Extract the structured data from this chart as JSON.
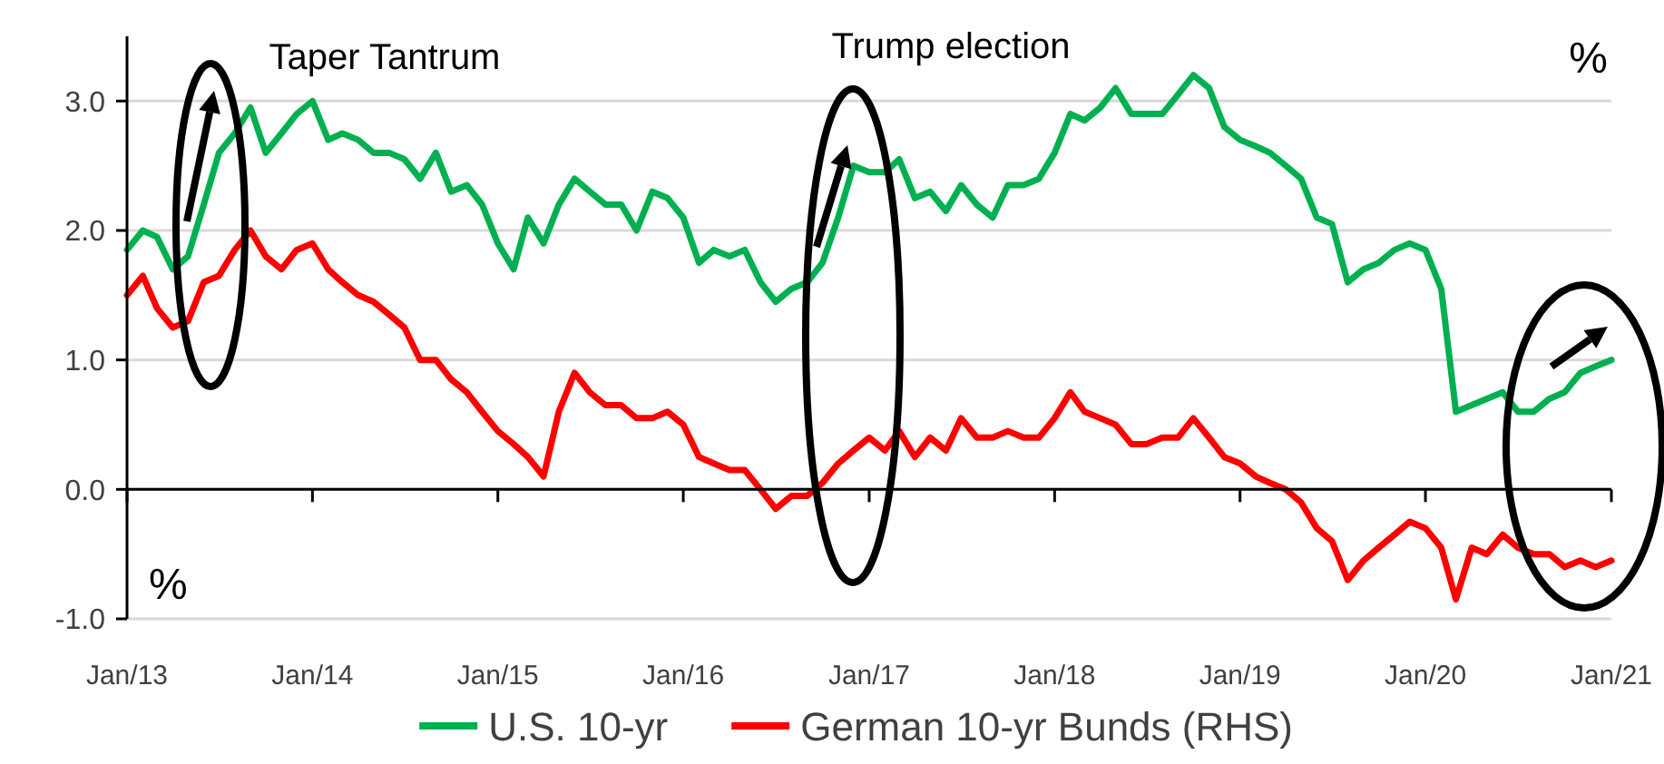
{
  "chart_data": {
    "type": "line",
    "ylabel": "%",
    "xlim": [
      "2013-01-01",
      "2021-01-01"
    ],
    "xticks": [
      {
        "value": "2013-01",
        "label": "Jan/13"
      },
      {
        "value": "2014-01",
        "label": "Jan/14"
      },
      {
        "value": "2015-01",
        "label": "Jan/15"
      },
      {
        "value": "2016-01",
        "label": "Jan/16"
      },
      {
        "value": "2017-01",
        "label": "Jan/17"
      },
      {
        "value": "2018-01",
        "label": "Jan/18"
      },
      {
        "value": "2019-01",
        "label": "Jan/19"
      },
      {
        "value": "2020-01",
        "label": "Jan/20"
      },
      {
        "value": "2021-01",
        "label": "Jan/21"
      }
    ],
    "ylim": [
      -1,
      3.5
    ],
    "yticks": [
      {
        "value": -1,
        "label": "-1.0"
      },
      {
        "value": 0,
        "label": "0.0"
      },
      {
        "value": 1,
        "label": "1.0"
      },
      {
        "value": 2,
        "label": "2.0"
      },
      {
        "value": 3,
        "label": "3.0"
      }
    ],
    "grid": "y",
    "legend": "bottom",
    "marker": "none",
    "line_style": "solid",
    "annotations": [
      "Taper Tantrum",
      "Trump election",
      "%"
    ],
    "x": [
      "2013-01",
      "2013-02",
      "2013-03",
      "2013-04",
      "2013-05",
      "2013-06",
      "2013-07",
      "2013-08",
      "2013-09",
      "2013-10",
      "2013-11",
      "2013-12",
      "2014-01",
      "2014-02",
      "2014-03",
      "2014-04",
      "2014-05",
      "2014-06",
      "2014-07",
      "2014-08",
      "2014-09",
      "2014-10",
      "2014-11",
      "2014-12",
      "2015-01",
      "2015-02",
      "2015-03",
      "2015-04",
      "2015-05",
      "2015-06",
      "2015-07",
      "2015-08",
      "2015-09",
      "2015-10",
      "2015-11",
      "2015-12",
      "2016-01",
      "2016-02",
      "2016-03",
      "2016-04",
      "2016-05",
      "2016-06",
      "2016-07",
      "2016-08",
      "2016-09",
      "2016-10",
      "2016-11",
      "2016-12",
      "2017-01",
      "2017-02",
      "2017-03",
      "2017-04",
      "2017-05",
      "2017-06",
      "2017-07",
      "2017-08",
      "2017-09",
      "2017-10",
      "2017-11",
      "2017-12",
      "2018-01",
      "2018-02",
      "2018-03",
      "2018-04",
      "2018-05",
      "2018-06",
      "2018-07",
      "2018-08",
      "2018-09",
      "2018-10",
      "2018-11",
      "2018-12",
      "2019-01",
      "2019-02",
      "2019-03",
      "2019-04",
      "2019-05",
      "2019-06",
      "2019-07",
      "2019-08",
      "2019-09",
      "2019-10",
      "2019-11",
      "2019-12",
      "2020-01",
      "2020-02",
      "2020-03",
      "2020-04",
      "2020-05",
      "2020-06",
      "2020-07",
      "2020-08",
      "2020-09",
      "2020-10",
      "2020-11",
      "2020-12",
      "2021-01"
    ],
    "series": [
      {
        "name": "U.S. 10-yr",
        "color": "#00b050",
        "values": [
          1.85,
          2.0,
          1.95,
          1.7,
          1.8,
          2.2,
          2.6,
          2.75,
          2.95,
          2.6,
          2.75,
          2.9,
          3.0,
          2.7,
          2.75,
          2.7,
          2.6,
          2.6,
          2.55,
          2.4,
          2.6,
          2.3,
          2.35,
          2.2,
          1.9,
          1.7,
          2.1,
          1.9,
          2.2,
          2.4,
          2.3,
          2.2,
          2.2,
          2.0,
          2.3,
          2.25,
          2.1,
          1.75,
          1.85,
          1.8,
          1.85,
          1.6,
          1.45,
          1.55,
          1.6,
          1.75,
          2.1,
          2.5,
          2.45,
          2.45,
          2.55,
          2.25,
          2.3,
          2.15,
          2.35,
          2.2,
          2.1,
          2.35,
          2.35,
          2.4,
          2.6,
          2.9,
          2.85,
          2.95,
          3.1,
          2.9,
          2.9,
          2.9,
          3.05,
          3.2,
          3.1,
          2.8,
          2.7,
          2.65,
          2.6,
          2.5,
          2.4,
          2.1,
          2.05,
          1.6,
          1.7,
          1.75,
          1.85,
          1.9,
          1.85,
          1.55,
          0.6,
          0.65,
          0.7,
          0.75,
          0.6,
          0.6,
          0.7,
          0.75,
          0.9,
          0.95,
          1.0
        ]
      },
      {
        "name": "German 10-yr Bunds (RHS)",
        "color": "#ff0000",
        "values": [
          1.5,
          1.65,
          1.4,
          1.25,
          1.3,
          1.6,
          1.65,
          1.85,
          2.0,
          1.8,
          1.7,
          1.85,
          1.9,
          1.7,
          1.6,
          1.5,
          1.45,
          1.35,
          1.25,
          1.0,
          1.0,
          0.85,
          0.75,
          0.6,
          0.45,
          0.35,
          0.25,
          0.1,
          0.6,
          0.9,
          0.75,
          0.65,
          0.65,
          0.55,
          0.55,
          0.6,
          0.5,
          0.25,
          0.2,
          0.15,
          0.15,
          0.0,
          -0.15,
          -0.05,
          -0.05,
          0.05,
          0.2,
          0.3,
          0.4,
          0.3,
          0.45,
          0.25,
          0.4,
          0.3,
          0.55,
          0.4,
          0.4,
          0.45,
          0.4,
          0.4,
          0.55,
          0.75,
          0.6,
          0.55,
          0.5,
          0.35,
          0.35,
          0.4,
          0.4,
          0.55,
          0.4,
          0.25,
          0.2,
          0.1,
          0.05,
          0.0,
          -0.1,
          -0.3,
          -0.4,
          -0.7,
          -0.55,
          -0.45,
          -0.35,
          -0.25,
          -0.3,
          -0.45,
          -0.85,
          -0.45,
          -0.5,
          -0.35,
          -0.45,
          -0.5,
          -0.5,
          -0.6,
          -0.55,
          -0.6,
          -0.55
        ]
      }
    ]
  }
}
